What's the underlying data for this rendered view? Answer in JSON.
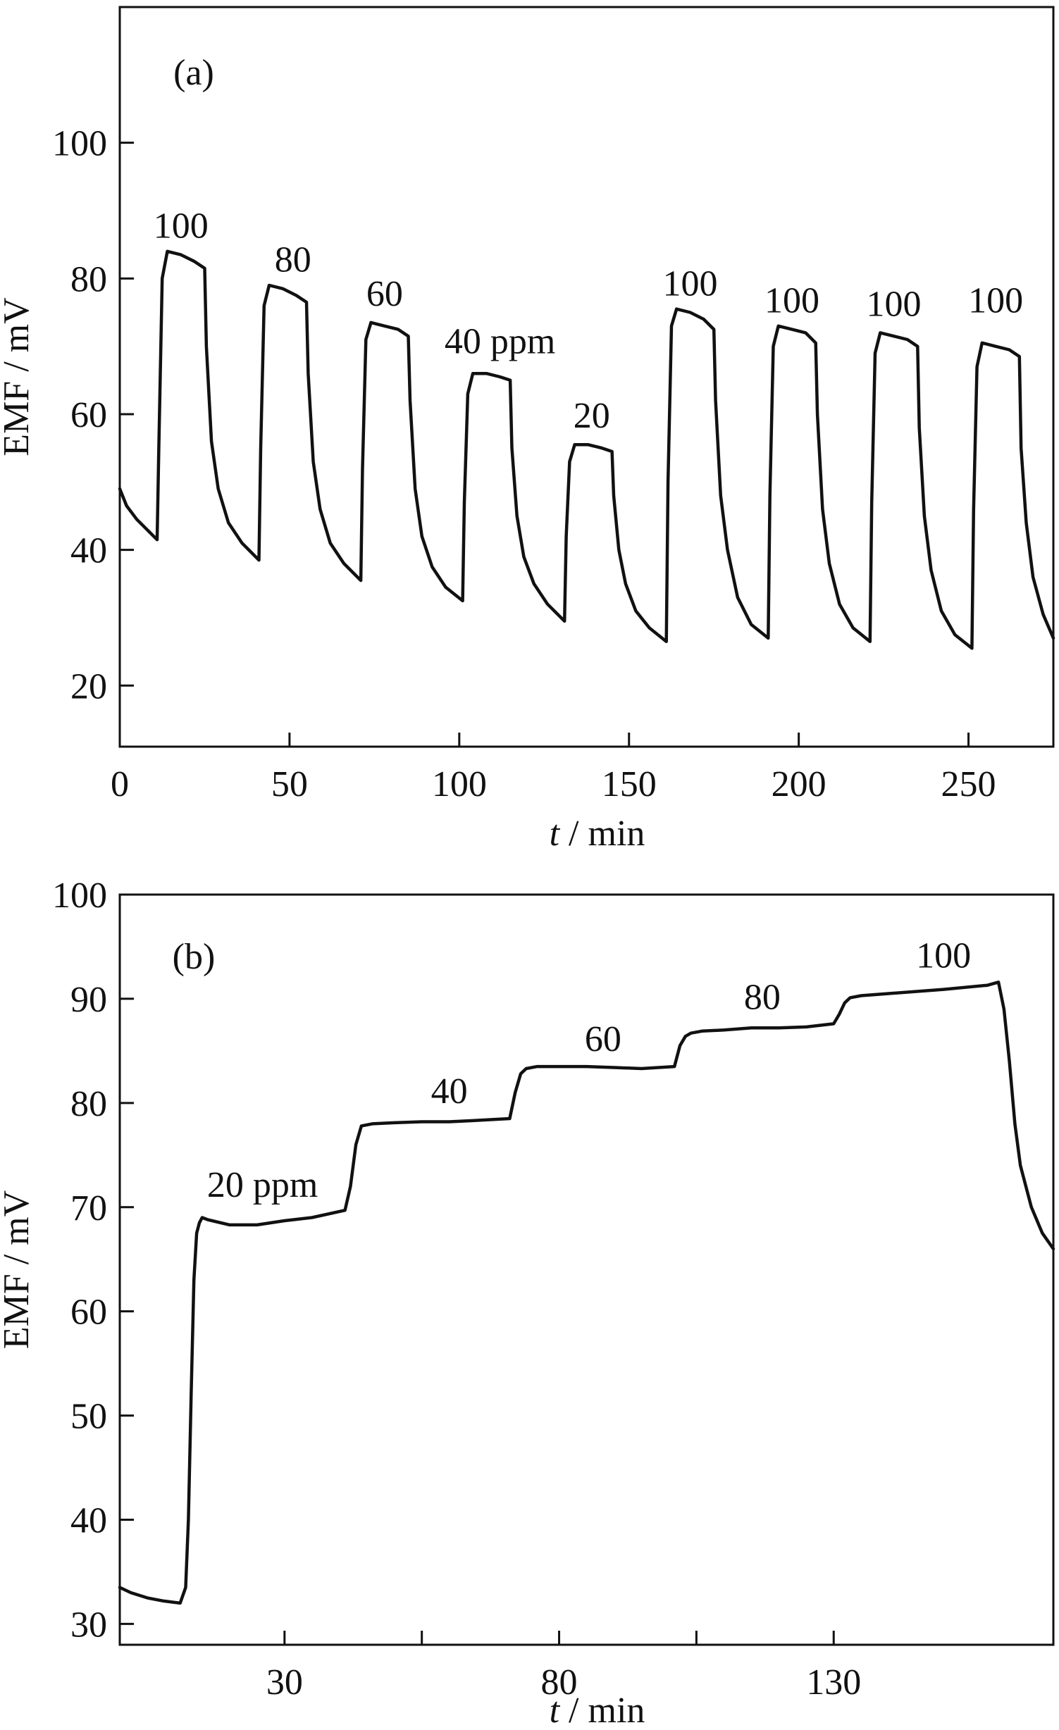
{
  "chart_data": [
    {
      "panel": "(a)",
      "type": "line",
      "xlabel": {
        "italic": "t",
        "rest": " / min"
      },
      "ylabel": "EMF / mV",
      "xlim": [
        0,
        275
      ],
      "ylim": [
        11,
        120
      ],
      "xticks": [
        0,
        50,
        100,
        150,
        200,
        250
      ],
      "xtick_labels": [
        "0",
        "50",
        "100",
        "150",
        "200",
        "250"
      ],
      "yticks": [
        20,
        40,
        60,
        80,
        100
      ],
      "ytick_labels": [
        "20",
        "40",
        "60",
        "80",
        "100"
      ],
      "grid": false,
      "legend": "none",
      "series": [
        {
          "x": [
            0,
            2,
            5,
            8,
            11,
            11.5,
            12.5,
            14,
            18,
            22,
            25,
            25.5,
            27,
            29,
            32,
            36,
            41,
            41.5,
            42.5,
            44,
            48,
            52,
            55,
            55.5,
            57,
            59,
            62,
            66,
            71,
            71.5,
            72.5,
            74,
            78,
            82,
            85,
            85.5,
            87,
            89,
            92,
            96,
            101,
            101.5,
            102.5,
            104,
            108,
            112,
            115,
            115.5,
            117,
            119,
            122,
            126,
            131,
            131.5,
            132.5,
            134,
            138,
            142,
            145,
            145.5,
            147,
            149,
            152,
            156,
            161,
            161.5,
            162.5,
            164,
            168,
            172,
            175,
            175.5,
            177,
            179,
            182,
            186,
            191,
            191.5,
            192.5,
            194,
            198,
            202,
            205,
            205.5,
            207,
            209,
            212,
            216,
            221,
            221.5,
            222.5,
            224,
            228,
            232,
            235,
            235.5,
            237,
            239,
            242,
            246,
            251,
            251.5,
            252.5,
            254,
            258,
            262,
            265,
            265.5,
            267,
            269,
            272,
            275
          ],
          "y": [
            49,
            46.5,
            44.5,
            43,
            41.5,
            55,
            80,
            84,
            83.5,
            82.5,
            81.5,
            70,
            56,
            49,
            44,
            41,
            38.5,
            55,
            76,
            79,
            78.5,
            77.5,
            76.5,
            66,
            53,
            46,
            41,
            38,
            35.5,
            52,
            71,
            73.5,
            73,
            72.5,
            71.5,
            62,
            49,
            42,
            37.5,
            34.5,
            32.5,
            47,
            63,
            66,
            66,
            65.5,
            65,
            55,
            45,
            39,
            35,
            32,
            29.5,
            42,
            53,
            55.5,
            55.5,
            55,
            54.5,
            48,
            40,
            35,
            31,
            28.5,
            26.5,
            50,
            73,
            75.5,
            75,
            74,
            72.5,
            62,
            48,
            40,
            33,
            29,
            27,
            48,
            70,
            73,
            72.5,
            72,
            70.5,
            60,
            46,
            38,
            32,
            28.5,
            26.5,
            47,
            69,
            72,
            71.5,
            71,
            70,
            58,
            45,
            37,
            31,
            27.5,
            25.5,
            46,
            67,
            70.5,
            70,
            69.5,
            68.5,
            55,
            44,
            36,
            30.5,
            27
          ]
        }
      ],
      "annotations": [
        {
          "text": "100",
          "x": 18,
          "y": 86
        },
        {
          "text": "80",
          "x": 51,
          "y": 81
        },
        {
          "text": "60",
          "x": 78,
          "y": 76
        },
        {
          "text": "40 ppm",
          "x": 112,
          "y": 69
        },
        {
          "text": "20",
          "x": 139,
          "y": 58
        },
        {
          "text": "100",
          "x": 168,
          "y": 77.5
        },
        {
          "text": "100",
          "x": 198,
          "y": 75
        },
        {
          "text": "100",
          "x": 228,
          "y": 74.5
        },
        {
          "text": "100",
          "x": 258,
          "y": 75
        }
      ]
    },
    {
      "panel": "(b)",
      "type": "line",
      "xlabel": {
        "italic": "t",
        "rest": " / min"
      },
      "ylabel": "EMF / mV",
      "xlim": [
        0,
        170
      ],
      "ylim": [
        28,
        100
      ],
      "xticks": [
        30,
        55,
        80,
        105,
        130
      ],
      "xtick_labels": [
        "30",
        "",
        "80",
        "",
        "130"
      ],
      "yticks": [
        30,
        40,
        50,
        60,
        70,
        80,
        90,
        100
      ],
      "ytick_labels": [
        "30",
        "40",
        "50",
        "60",
        "70",
        "80",
        "90",
        "100"
      ],
      "grid": false,
      "legend": "none",
      "series": [
        {
          "x": [
            0,
            2,
            5,
            8,
            11,
            12,
            12.5,
            13,
            13.5,
            14,
            14.5,
            15,
            16,
            20,
            25,
            30,
            35,
            41,
            42,
            43,
            44,
            46,
            50,
            55,
            60,
            64,
            71,
            72,
            73,
            74,
            76,
            80,
            85,
            90,
            95,
            101,
            102,
            103,
            104,
            106,
            110,
            115,
            120,
            125,
            130,
            131,
            132,
            133,
            135,
            140,
            150,
            158,
            160,
            161,
            162,
            163,
            164,
            166,
            168,
            170
          ],
          "y": [
            33.5,
            33,
            32.5,
            32.2,
            32,
            33.5,
            40,
            52,
            63,
            67.5,
            68.5,
            69,
            68.8,
            68.3,
            68.3,
            68.7,
            69,
            69.7,
            72,
            76,
            77.8,
            78,
            78.1,
            78.2,
            78.2,
            78.3,
            78.5,
            81,
            82.8,
            83.3,
            83.5,
            83.5,
            83.5,
            83.4,
            83.3,
            83.5,
            85.5,
            86.4,
            86.7,
            86.9,
            87,
            87.2,
            87.2,
            87.3,
            87.6,
            88.5,
            89.6,
            90.1,
            90.3,
            90.5,
            90.9,
            91.3,
            91.6,
            89,
            84,
            78,
            74,
            70,
            67.5,
            66
          ]
        }
      ],
      "annotations": [
        {
          "text": "20 ppm",
          "x": 26,
          "y": 71
        },
        {
          "text": "40",
          "x": 60,
          "y": 80
        },
        {
          "text": "60",
          "x": 88,
          "y": 85
        },
        {
          "text": "80",
          "x": 117,
          "y": 89
        },
        {
          "text": "100",
          "x": 150,
          "y": 93
        }
      ]
    }
  ]
}
